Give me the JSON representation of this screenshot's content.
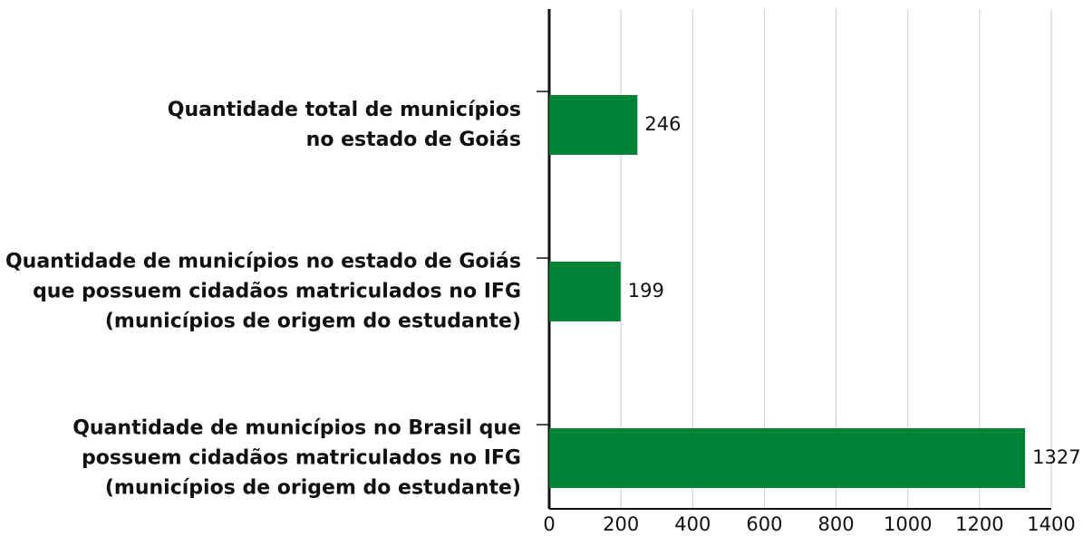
{
  "chart_data": {
    "type": "bar",
    "orientation": "horizontal",
    "categories": [
      "Quantidade total de municípios\nno estado de Goiás",
      "Quantidade de municípios no estado de Goiás\nque possuem cidadãos matriculados no IFG\n(municípios de origem do estudante)",
      "Quantidade de municípios no Brasil que\npossuem cidadãos matriculados no IFG\n(municípios de origem do estudante)"
    ],
    "values": [
      246,
      199,
      1327
    ],
    "color": "#008236",
    "xlim": [
      0,
      1400
    ],
    "xticks": [
      0,
      200,
      400,
      600,
      800,
      1000,
      1200,
      1400
    ],
    "grid": true
  }
}
